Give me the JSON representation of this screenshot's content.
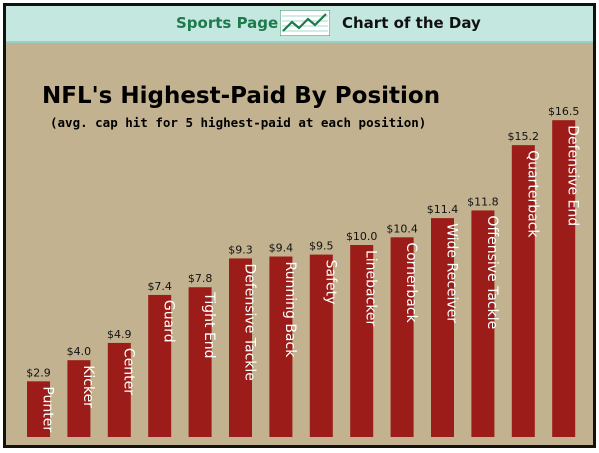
{
  "banner": {
    "left_label": "Sports Page",
    "right_label": "Chart of the Day",
    "icon": "trend-line-chart-icon"
  },
  "colors": {
    "background": "#c3b28f",
    "banner": "#c4e8e0",
    "bar": "#9b1c18",
    "banner_text": "#1e7a4c"
  },
  "chart_data": {
    "type": "bar",
    "title": "NFL's Highest-Paid By Position",
    "subtitle": "(avg. cap hit for 5 highest-paid at each position)",
    "categories": [
      "Punter",
      "Kicker",
      "Center",
      "Guard",
      "Tight End",
      "Defensive Tackle",
      "Running Back",
      "Safety",
      "Linebacker",
      "Cornerback",
      "Wide Receiver",
      "Offensive Tackle",
      "Quarterback",
      "Defensive End"
    ],
    "values": [
      2.9,
      4.0,
      4.9,
      7.4,
      7.8,
      9.3,
      9.4,
      9.5,
      10.0,
      10.4,
      11.4,
      11.8,
      15.2,
      16.5
    ],
    "value_labels": [
      "$2.9",
      "$4.0",
      "$4.9",
      "$7.4",
      "$7.8",
      "$9.3",
      "$9.4",
      "$9.5",
      "$10.0",
      "$10.4",
      "$11.4",
      "$11.8",
      "$15.2",
      "$16.5"
    ],
    "xlabel": "",
    "ylabel": "",
    "grid": false,
    "legend": "none"
  }
}
